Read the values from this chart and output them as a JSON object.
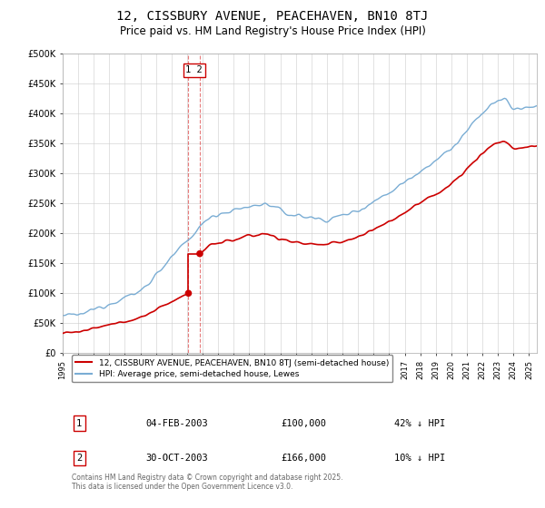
{
  "title": "12, CISSBURY AVENUE, PEACEHAVEN, BN10 8TJ",
  "subtitle": "Price paid vs. HM Land Registry's House Price Index (HPI)",
  "title_fontsize": 10,
  "subtitle_fontsize": 8.5,
  "ylim": [
    0,
    500000
  ],
  "yticks": [
    0,
    50000,
    100000,
    150000,
    200000,
    250000,
    300000,
    350000,
    400000,
    450000,
    500000
  ],
  "ytick_labels": [
    "£0",
    "£50K",
    "£100K",
    "£150K",
    "£200K",
    "£250K",
    "£300K",
    "£350K",
    "£400K",
    "£450K",
    "£500K"
  ],
  "hpi_color": "#7aadd4",
  "price_color": "#cc0000",
  "vline_color": "#dd4444",
  "legend_label_red": "12, CISSBURY AVENUE, PEACEHAVEN, BN10 8TJ (semi-detached house)",
  "legend_label_blue": "HPI: Average price, semi-detached house, Lewes",
  "transaction_1_date": "04-FEB-2003",
  "transaction_1_price": "£100,000",
  "transaction_1_hpi": "42% ↓ HPI",
  "transaction_2_date": "30-OCT-2003",
  "transaction_2_price": "£166,000",
  "transaction_2_hpi": "10% ↓ HPI",
  "footer_text": "Contains HM Land Registry data © Crown copyright and database right 2025.\nThis data is licensed under the Open Government Licence v3.0.",
  "background_color": "#ffffff",
  "grid_color": "#cccccc",
  "t1_x": 2003.09,
  "t1_y": 100000,
  "t2_x": 2003.82,
  "t2_y": 166000,
  "xmin": 1995,
  "xmax": 2025.5
}
